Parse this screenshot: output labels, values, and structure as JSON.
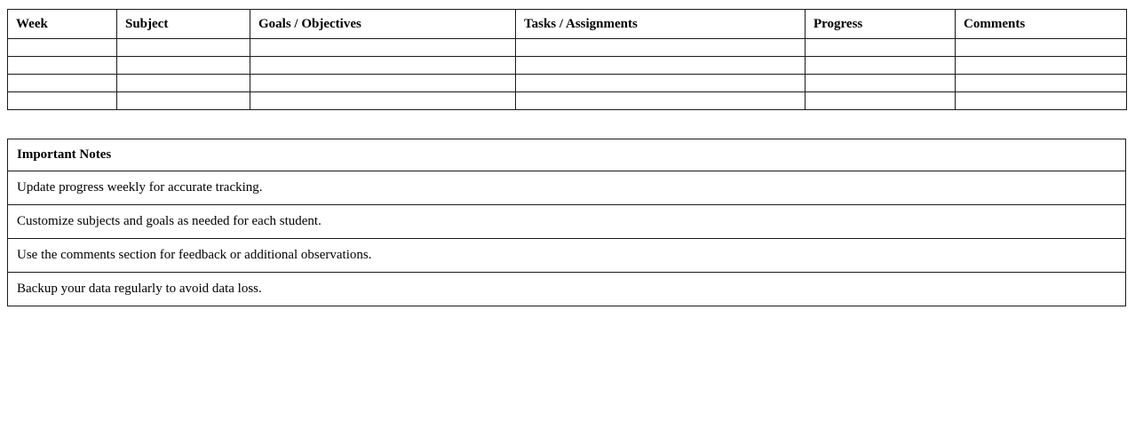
{
  "colors": {
    "background": "#ffffff",
    "border": "#1a1a1a",
    "text": "#000000"
  },
  "tracker_table": {
    "columns": [
      {
        "label": "Week"
      },
      {
        "label": "Subject"
      },
      {
        "label": "Goals / Objectives"
      },
      {
        "label": "Tasks / Assignments"
      },
      {
        "label": "Progress"
      },
      {
        "label": "Comments"
      }
    ],
    "empty_row_count": 4
  },
  "notes_table": {
    "header": "Important Notes",
    "notes": [
      "Update progress weekly for accurate tracking.",
      "Customize subjects and goals as needed for each student.",
      "Use the comments section for feedback or additional observations.",
      "Backup your data regularly to avoid data loss."
    ]
  }
}
